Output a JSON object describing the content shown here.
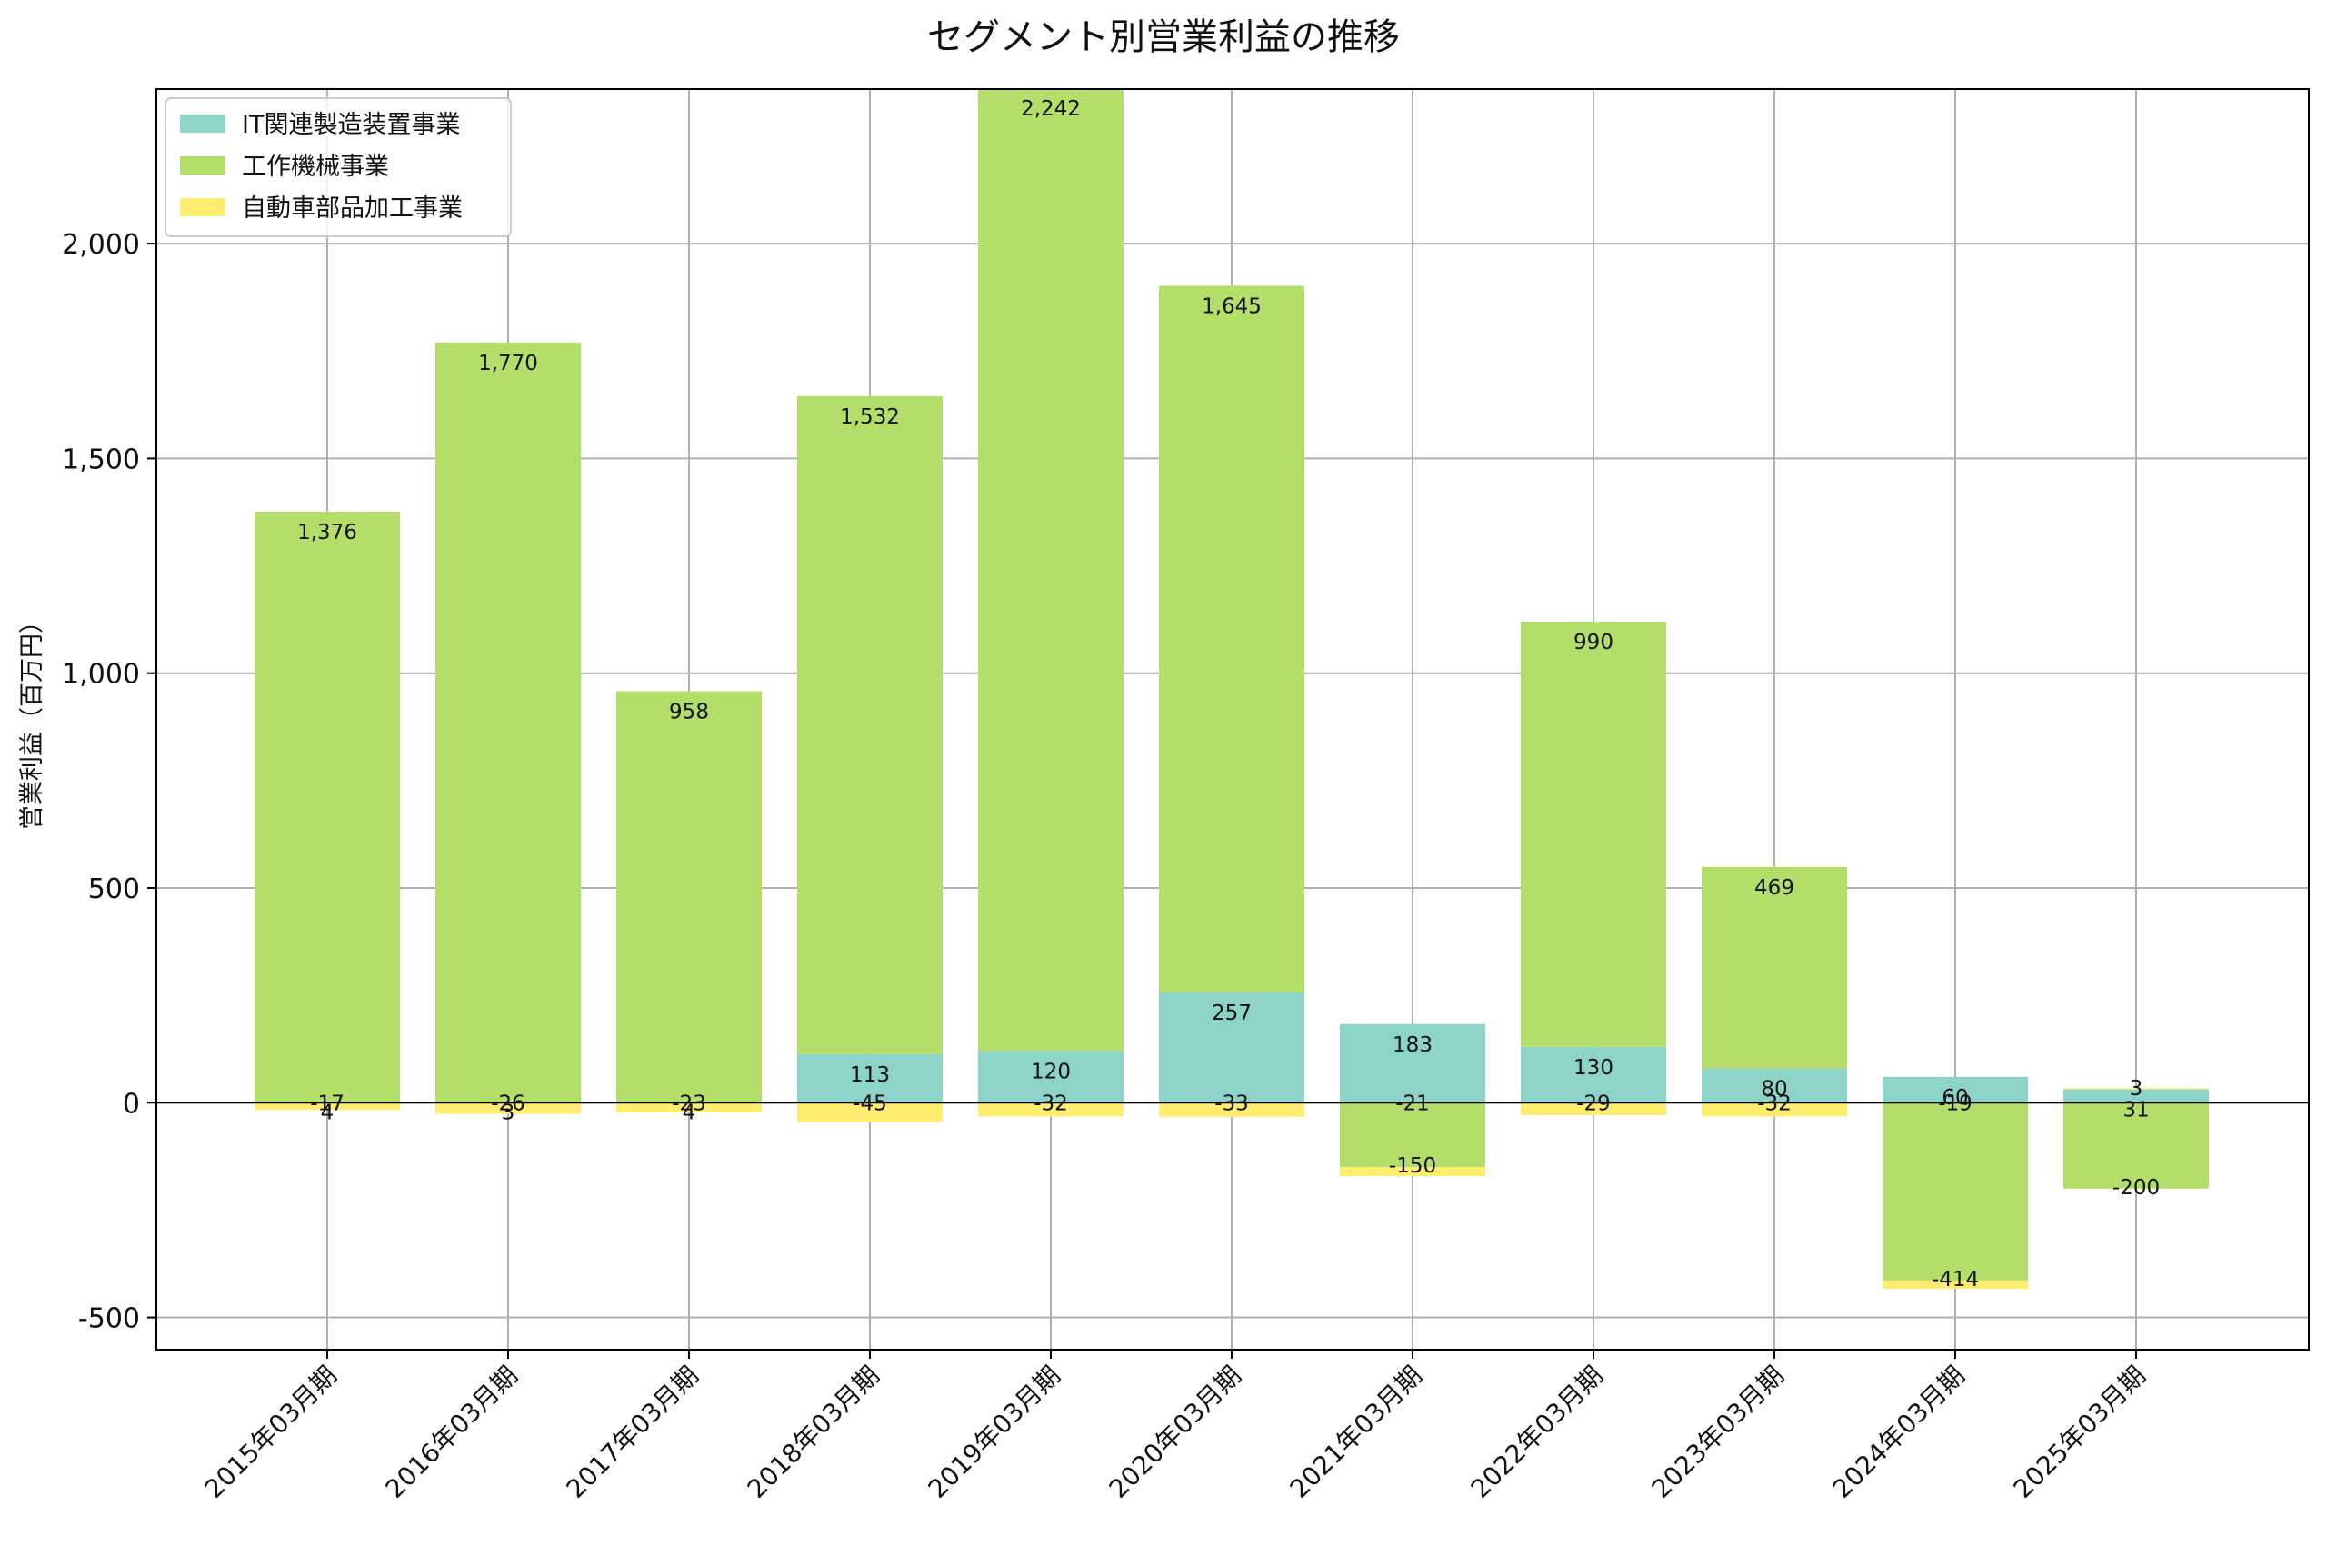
{
  "chart_data": {
    "type": "bar",
    "stacked": true,
    "title": "セグメント別営業利益の推移",
    "xlabel": "",
    "ylabel": "営業利益（百万円）",
    "ylim": [
      -575,
      2360
    ],
    "yticks": [
      -500,
      0,
      500,
      1000,
      1500,
      2000
    ],
    "ytick_labels": [
      "-500",
      "0",
      "500",
      "1,000",
      "1,500",
      "2,000"
    ],
    "grid": true,
    "legend_position": "top-left",
    "categories": [
      "2015年03月期",
      "2016年03月期",
      "2017年03月期",
      "2018年03月期",
      "2019年03月期",
      "2020年03月期",
      "2021年03月期",
      "2022年03月期",
      "2023年03月期",
      "2024年03月期",
      "2025年03月期"
    ],
    "series": [
      {
        "name": "IT関連製造装置事業",
        "color": "#8dd3c7",
        "values": [
          0,
          0,
          0,
          113,
          120,
          257,
          183,
          130,
          80,
          60,
          31
        ],
        "labels": [
          "",
          "",
          "",
          "113",
          "120",
          "257",
          "183",
          "130",
          "80",
          "60",
          "31"
        ]
      },
      {
        "name": "工作機械事業",
        "color": "#b3de69",
        "values": [
          1376,
          1770,
          958,
          1532,
          2242,
          1645,
          -150,
          990,
          469,
          -414,
          -200
        ],
        "labels": [
          "1,376",
          "1,770",
          "958",
          "1,532",
          "2,242",
          "1,645",
          "-150",
          "990",
          "469",
          "-414",
          "-200"
        ]
      },
      {
        "name": "自動車部品加工事業",
        "color": "#ffed6f",
        "values": [
          -17,
          -26,
          -23,
          -45,
          -32,
          -33,
          -21,
          -29,
          -32,
          -19,
          3
        ],
        "labels": [
          "-17",
          "-26",
          "-23",
          "-45",
          "-32",
          "-33",
          "-21",
          "-29",
          "-32",
          "-19",
          "3"
        ]
      }
    ],
    "extra_labels": [
      "4",
      "3",
      "4",
      "",
      "",
      "",
      "",
      "",
      "",
      "",
      ""
    ]
  }
}
